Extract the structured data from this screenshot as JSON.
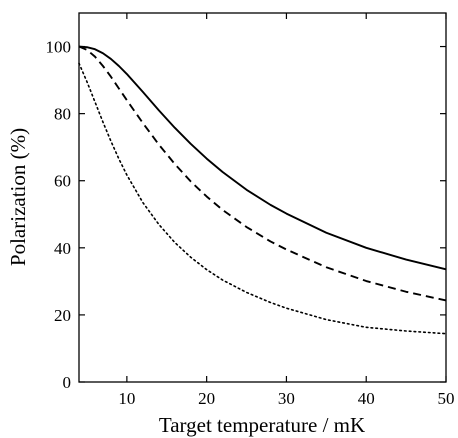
{
  "chart_data": {
    "type": "line",
    "xlabel": "Target temperature / mK",
    "ylabel": "Polarization (%)",
    "xlim": [
      4,
      50
    ],
    "ylim": [
      0,
      110
    ],
    "xticks": [
      10,
      20,
      30,
      40,
      50
    ],
    "yticks": [
      0,
      20,
      40,
      60,
      80,
      100
    ],
    "grid": false,
    "legend": "none",
    "series": [
      {
        "style": "solid",
        "color": "#000000",
        "x": [
          4,
          5,
          6,
          7,
          8,
          9,
          10,
          12,
          14,
          16,
          18,
          20,
          22,
          25,
          28,
          30,
          35,
          40,
          45,
          50
        ],
        "y": [
          100,
          99.8,
          99.2,
          98,
          96.3,
          94.2,
          91.8,
          86.5,
          81,
          75.8,
          71,
          66.6,
          62.6,
          57.3,
          52.8,
          50.2,
          44.5,
          40,
          36.5,
          33.6
        ]
      },
      {
        "style": "dashed",
        "color": "#000000",
        "x": [
          4,
          5,
          6,
          7,
          8,
          9,
          10,
          12,
          14,
          16,
          18,
          20,
          22,
          25,
          28,
          30,
          35,
          40,
          45,
          50
        ],
        "y": [
          100,
          99,
          97,
          94.2,
          91,
          87.5,
          84,
          77.2,
          70.8,
          65,
          59.8,
          55.3,
          51.3,
          46.2,
          41.9,
          39.5,
          34.2,
          30.1,
          26.9,
          24.3
        ]
      },
      {
        "style": "dotted",
        "color": "#000000",
        "x": [
          4,
          5,
          6,
          7,
          8,
          9,
          10,
          12,
          14,
          16,
          18,
          20,
          22,
          25,
          28,
          30,
          35,
          40,
          45,
          50
        ],
        "y": [
          95,
          89.5,
          83.5,
          77.5,
          71.8,
          66.5,
          61.7,
          53.5,
          47,
          41.6,
          37.2,
          33.5,
          30.4,
          26.7,
          23.7,
          22,
          18.6,
          16.3,
          15.2,
          14.4
        ]
      }
    ]
  }
}
